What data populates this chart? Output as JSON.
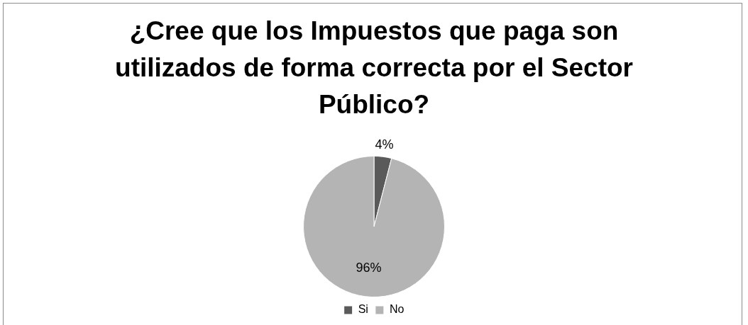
{
  "chart_data": {
    "type": "pie",
    "title": "¿Cree que los Impuestos que paga son utilizados de forma correcta por el Sector Público?",
    "categories": [
      "Si",
      "No"
    ],
    "values": [
      4,
      96
    ],
    "colors": [
      "#5a5a5a",
      "#b4b4b4"
    ],
    "value_labels": [
      "4%",
      "96%"
    ],
    "legend": "bottom"
  }
}
